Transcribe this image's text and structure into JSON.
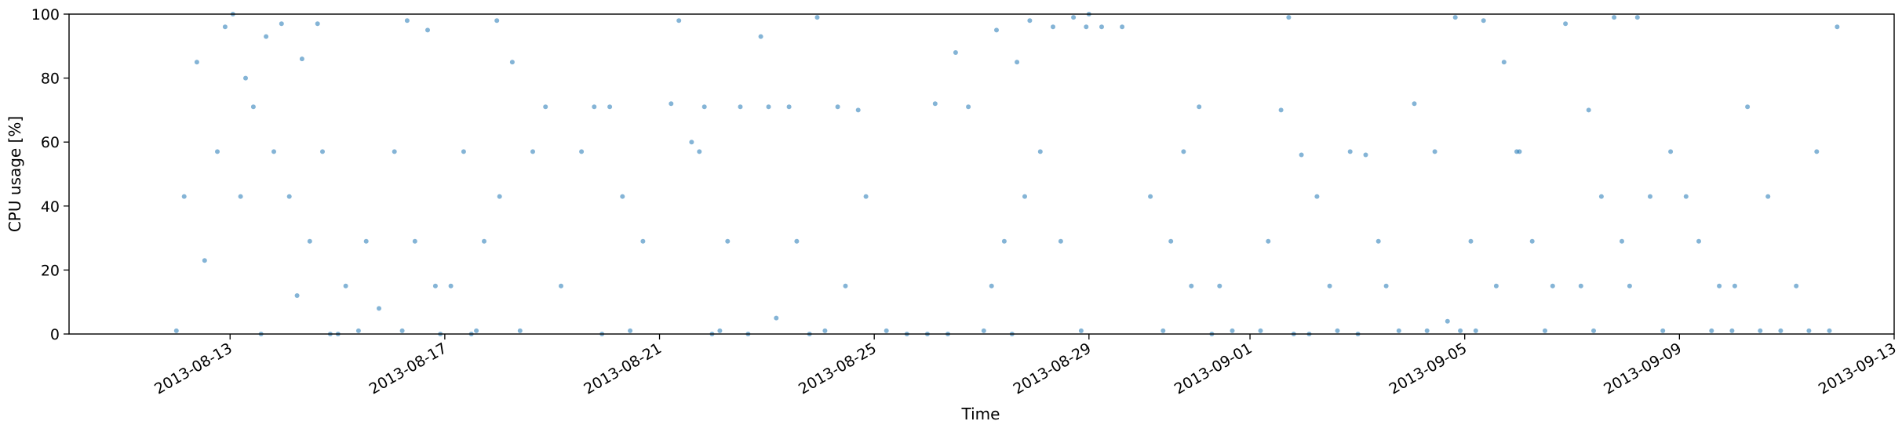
{
  "chart_data": {
    "type": "scatter",
    "title": "",
    "xlabel": "Time",
    "ylabel": "CPU usage [%]",
    "xlim": [
      "2013-08-10",
      "2013-09-13"
    ],
    "ylim": [
      0,
      100
    ],
    "yticks": [
      0,
      20,
      40,
      60,
      80,
      100
    ],
    "xticks": [
      "2013-08-13",
      "2013-08-17",
      "2013-08-21",
      "2013-08-25",
      "2013-08-29",
      "2013-09-01",
      "2013-09-05",
      "2013-09-09",
      "2013-09-13"
    ],
    "grid": false,
    "legend": "none",
    "marker_color": "#1f77b4",
    "series": [
      {
        "x": [
          "2013-08-12",
          "2013-08-12",
          "2013-08-12",
          "2013-08-12",
          "2013-08-12",
          "2013-08-12",
          "2013-08-13",
          "2013-08-13",
          "2013-08-13",
          "2013-08-13",
          "2013-08-13",
          "2013-08-13",
          "2013-08-13",
          "2013-08-13",
          "2013-08-14",
          "2013-08-14",
          "2013-08-14",
          "2013-08-14",
          "2013-08-14",
          "2013-08-14",
          "2013-08-14",
          "2013-08-15",
          "2013-08-15",
          "2013-08-15",
          "2013-08-15",
          "2013-08-15",
          "2013-08-16",
          "2013-08-16",
          "2013-08-16",
          "2013-08-16",
          "2013-08-16",
          "2013-08-16",
          "2013-08-16",
          "2013-08-17",
          "2013-08-17",
          "2013-08-17",
          "2013-08-17",
          "2013-08-17",
          "2013-08-17",
          "2013-08-18",
          "2013-08-18",
          "2013-08-18",
          "2013-08-18",
          "2013-08-18",
          "2013-08-19",
          "2013-08-19",
          "2013-08-19",
          "2013-08-19",
          "2013-08-20",
          "2013-08-20",
          "2013-08-20",
          "2013-08-20",
          "2013-08-21",
          "2013-08-21",
          "2013-08-21",
          "2013-08-21",
          "2013-08-21",
          "2013-08-21",
          "2013-08-22",
          "2013-08-22",
          "2013-08-22",
          "2013-08-22",
          "2013-08-22",
          "2013-08-23",
          "2013-08-23",
          "2013-08-23",
          "2013-08-23",
          "2013-08-23",
          "2013-08-23",
          "2013-08-24",
          "2013-08-24",
          "2013-08-24",
          "2013-08-24",
          "2013-08-24",
          "2013-08-25",
          "2013-08-25",
          "2013-08-25",
          "2013-08-26",
          "2013-08-26",
          "2013-08-26",
          "2013-08-26",
          "2013-08-27",
          "2013-08-27",
          "2013-08-27",
          "2013-08-27",
          "2013-08-27",
          "2013-08-27",
          "2013-08-27",
          "2013-08-27",
          "2013-08-28",
          "2013-08-28",
          "2013-08-28",
          "2013-08-28",
          "2013-08-28",
          "2013-08-28",
          "2013-08-29",
          "2013-08-29",
          "2013-08-29",
          "2013-08-30",
          "2013-08-30",
          "2013-08-30",
          "2013-08-30",
          "2013-08-30",
          "2013-08-31",
          "2013-08-31",
          "2013-08-31",
          "2013-08-31",
          "2013-09-01",
          "2013-09-01",
          "2013-09-01",
          "2013-09-01",
          "2013-09-01",
          "2013-09-01",
          "2013-09-02",
          "2013-09-02",
          "2013-09-02",
          "2013-09-02",
          "2013-09-02",
          "2013-09-03",
          "2013-09-03",
          "2013-09-03",
          "2013-09-03",
          "2013-09-03",
          "2013-09-04",
          "2013-09-04",
          "2013-09-04",
          "2013-09-04",
          "2013-09-04",
          "2013-09-04",
          "2013-09-05",
          "2013-09-05",
          "2013-09-05",
          "2013-09-05",
          "2013-09-05",
          "2013-09-05",
          "2013-09-06",
          "2013-09-06",
          "2013-09-06",
          "2013-09-06",
          "2013-09-06",
          "2013-09-07",
          "2013-09-07",
          "2013-09-07",
          "2013-09-07",
          "2013-09-07",
          "2013-09-07",
          "2013-09-08",
          "2013-09-08",
          "2013-09-08",
          "2013-09-08",
          "2013-09-08",
          "2013-09-09",
          "2013-09-09",
          "2013-09-09",
          "2013-09-09",
          "2013-09-09",
          "2013-09-10",
          "2013-09-10",
          "2013-09-10",
          "2013-09-10",
          "2013-09-10",
          "2013-09-11",
          "2013-09-11",
          "2013-09-11",
          "2013-09-11",
          "2013-09-11"
        ],
        "y": [
          1,
          85,
          57,
          43,
          23,
          96,
          80,
          93,
          100,
          71,
          57,
          43,
          0,
          97,
          86,
          57,
          43,
          29,
          0,
          12,
          97,
          0,
          1,
          8,
          15,
          29,
          0,
          98,
          95,
          57,
          29,
          15,
          1,
          1,
          98,
          57,
          29,
          15,
          0,
          71,
          85,
          57,
          43,
          1,
          71,
          15,
          57,
          0,
          43,
          29,
          71,
          1,
          71,
          72,
          60,
          0,
          98,
          57,
          1,
          71,
          93,
          29,
          0,
          71,
          71,
          0,
          5,
          29,
          99,
          71,
          70,
          1,
          15,
          43,
          1,
          0,
          0,
          0,
          71,
          72,
          88,
          98,
          95,
          85,
          1,
          29,
          43,
          15,
          0,
          96,
          96,
          99,
          57,
          29,
          1,
          96,
          96,
          100,
          1,
          57,
          43,
          29,
          15,
          0,
          1,
          71,
          15,
          0,
          1,
          70,
          56,
          29,
          99,
          0,
          15,
          57,
          43,
          1,
          0,
          29,
          1,
          56,
          15,
          1,
          1,
          4,
          72,
          57,
          99,
          1,
          15,
          57,
          98,
          85,
          29,
          1,
          97,
          29,
          15,
          57,
          1,
          99,
          15,
          43,
          29,
          70,
          1,
          15,
          43,
          57,
          99,
          1,
          1,
          29,
          15,
          43,
          1,
          1,
          71,
          43,
          15,
          1,
          1,
          15,
          57,
          96
        ]
      }
    ]
  }
}
